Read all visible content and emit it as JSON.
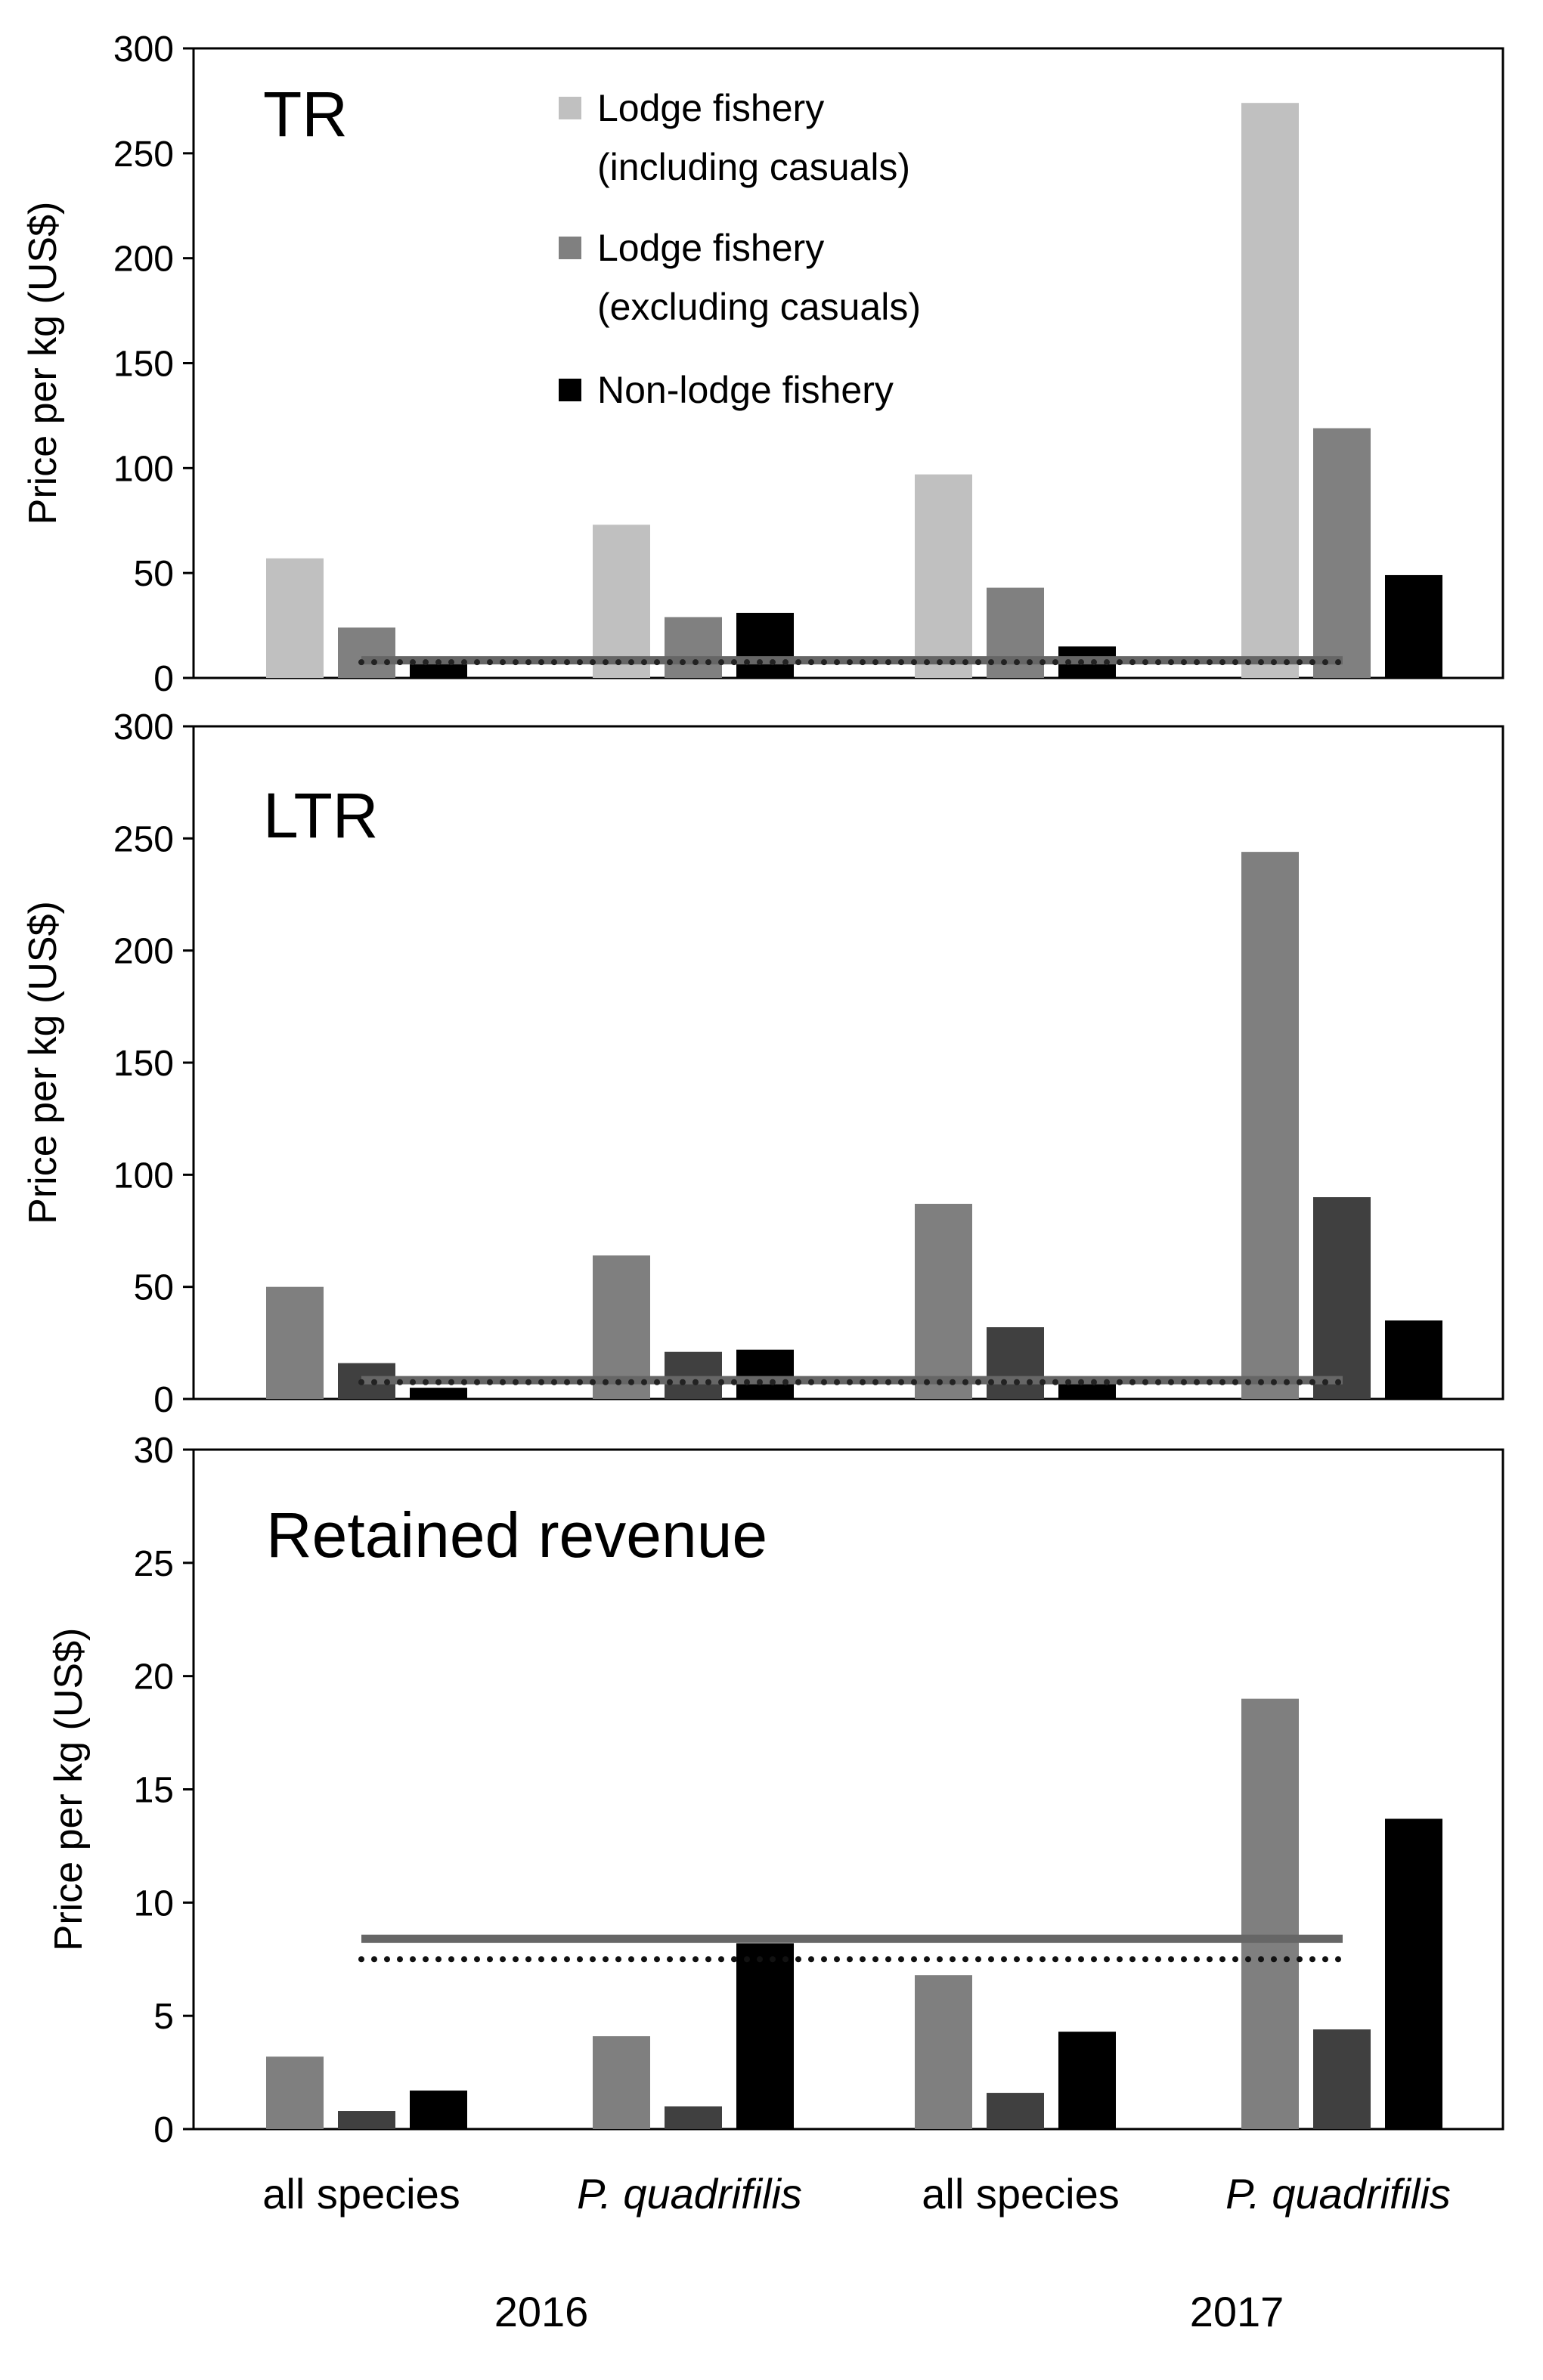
{
  "chart_data": [
    {
      "type": "bar",
      "title": "TR",
      "ylabel": "Price per kg (US$)",
      "ylim": [
        0,
        300
      ],
      "yticks": [
        "0",
        "50",
        "100",
        "150",
        "200",
        "250",
        "300"
      ],
      "categories": [
        "all species",
        "P. quadrifilis",
        "all species",
        "P. quadrifilis"
      ],
      "years": [
        "2016",
        "2017"
      ],
      "series": [
        {
          "name": "Lodge fishery (including casuals)",
          "color": "#c0c0c0",
          "values": [
            57,
            73,
            97,
            274
          ]
        },
        {
          "name": "Lodge fishery (excluding casuals)",
          "color": "#808080",
          "values": [
            24,
            29,
            43,
            119
          ]
        },
        {
          "name": "Non-lodge fishery",
          "color": "#000000",
          "values": [
            7,
            31,
            15,
            49
          ]
        }
      ],
      "reference_lines": [
        {
          "style": "solid",
          "color": "#666666",
          "value": 8.4
        },
        {
          "style": "dotted",
          "color": "#222222",
          "value": 7.5
        }
      ]
    },
    {
      "type": "bar",
      "title": "LTR",
      "ylabel": "Price per kg (US$)",
      "ylim": [
        0,
        300
      ],
      "yticks": [
        "0",
        "50",
        "100",
        "150",
        "200",
        "250",
        "300"
      ],
      "categories": [
        "all species",
        "P. quadrifilis",
        "all species",
        "P. quadrifilis"
      ],
      "series": [
        {
          "name": "Lodge fishery (including casuals)",
          "color": "#7f7f7f",
          "values": [
            50,
            64,
            87,
            244
          ]
        },
        {
          "name": "Lodge fishery (excluding casuals)",
          "color": "#404040",
          "values": [
            16,
            21,
            32,
            90
          ]
        },
        {
          "name": "Non-lodge fishery",
          "color": "#000000",
          "values": [
            5,
            22,
            10,
            35
          ]
        }
      ],
      "reference_lines": [
        {
          "style": "solid",
          "color": "#666666",
          "value": 8.4
        },
        {
          "style": "dotted",
          "color": "#222222",
          "value": 7.5
        }
      ]
    },
    {
      "type": "bar",
      "title": "Retained revenue",
      "ylabel": "Price per kg (US$)",
      "ylim": [
        0,
        30
      ],
      "yticks": [
        "0",
        "5",
        "10",
        "15",
        "20",
        "25",
        "30"
      ],
      "categories": [
        "all species",
        "P. quadrifilis",
        "all species",
        "P. quadrifilis"
      ],
      "category_styles": [
        "normal",
        "italic",
        "normal",
        "italic"
      ],
      "years": [
        "2016",
        "2017"
      ],
      "series": [
        {
          "name": "Lodge fishery (including casuals)",
          "color": "#7f7f7f",
          "values": [
            3.2,
            4.1,
            6.8,
            19.0
          ]
        },
        {
          "name": "Lodge fishery (excluding casuals)",
          "color": "#404040",
          "values": [
            0.8,
            1.0,
            1.6,
            4.4
          ]
        },
        {
          "name": "Non-lodge fishery",
          "color": "#000000",
          "values": [
            1.7,
            8.2,
            4.3,
            13.7
          ]
        }
      ],
      "reference_lines": [
        {
          "style": "solid",
          "color": "#666666",
          "value": 8.4
        },
        {
          "style": "dotted",
          "color": "#111111",
          "value": 7.5
        }
      ]
    }
  ],
  "legend": {
    "items": [
      {
        "line1": "Lodge fishery",
        "line2": "(including casuals)",
        "color": "#c0c0c0"
      },
      {
        "line1": "Lodge fishery",
        "line2": "(excluding casuals)",
        "color": "#808080"
      },
      {
        "line1": "Non-lodge fishery",
        "line2": "",
        "color": "#000000"
      }
    ]
  }
}
